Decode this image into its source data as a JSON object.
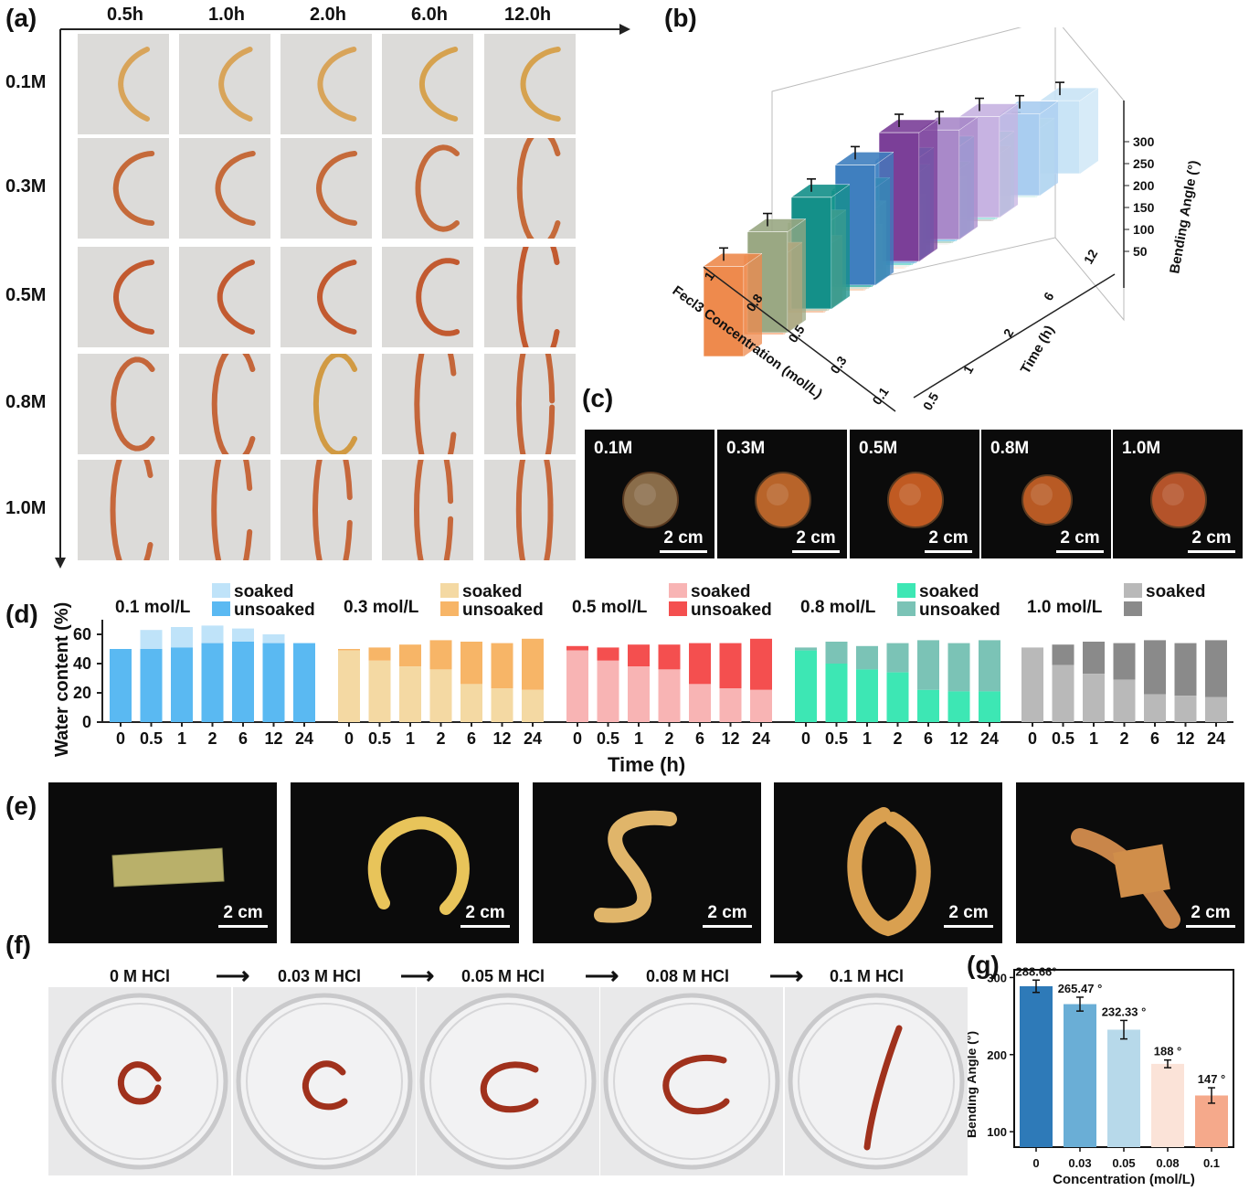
{
  "panel_a": {
    "label": "(a)",
    "times": [
      "0.5h",
      "1.0h",
      "2.0h",
      "6.0h",
      "12.0h"
    ],
    "concs": [
      "0.1M",
      "0.3M",
      "0.5M",
      "0.8M",
      "1.0M"
    ],
    "curvature": [
      [
        0.1,
        0.12,
        0.2,
        0.18,
        0.25
      ],
      [
        0.3,
        0.25,
        0.28,
        0.55,
        0.7
      ],
      [
        0.28,
        0.15,
        0.22,
        0.45,
        0.75
      ],
      [
        0.6,
        0.7,
        0.65,
        0.8,
        0.95
      ],
      [
        0.75,
        0.85,
        0.9,
        0.92,
        1.0
      ]
    ]
  },
  "panel_b": {
    "label": "(b)"
  },
  "panel_c": {
    "label": "(c)",
    "tiles": [
      "0.1M",
      "0.3M",
      "0.5M",
      "0.8M",
      "1.0M"
    ],
    "scale": "2 cm"
  },
  "panel_d": {
    "label": "(d)"
  },
  "panel_e": {
    "label": "(e)",
    "scale": "2 cm"
  },
  "panel_f": {
    "label": "(f)",
    "steps": [
      "0 M HCl",
      "0.03 M HCl",
      "0.05 M HCl",
      "0.08 M HCl",
      "0.1 M HCl"
    ],
    "arrow": "⟶"
  },
  "panel_g": {
    "label": "(g)"
  },
  "chart_data": [
    {
      "type": "bar",
      "panel": "b",
      "zlabel": "Bending Angle (°)",
      "xlabel": "Fecl3 Concentration (mol/L)",
      "ylabel": "Time (h)",
      "concentrations": [
        "0.1",
        "0.3",
        "0.5",
        "0.8",
        "1"
      ],
      "times": [
        "0.5",
        "1",
        "2",
        "6",
        "12"
      ],
      "z_ticks": [
        "50",
        "100",
        "150",
        "200",
        "250",
        "300"
      ],
      "zlim": [
        0,
        300
      ],
      "values": [
        [
          120,
          130,
          145,
          155,
          170
        ],
        [
          125,
          140,
          160,
          175,
          190
        ],
        [
          150,
          175,
          205,
          215,
          235
        ],
        [
          185,
          205,
          225,
          240,
          255
        ],
        [
          210,
          235,
          260,
          280,
          300
        ]
      ]
    },
    {
      "type": "bar",
      "panel": "d",
      "ylabel": "Water content (%)",
      "xlabel": "Time (h)",
      "x": [
        "0",
        "0.5",
        "1",
        "2",
        "6",
        "12",
        "24"
      ],
      "ylim": [
        0,
        70
      ],
      "yticks": [
        "0",
        "20",
        "40",
        "60"
      ],
      "legend_soaked": "soaked",
      "legend_unsoaked": "unsoaked",
      "groups": [
        {
          "name": "0.1 mol/L",
          "soaked_color": "#bfe3f9",
          "unsoaked_color": "#5ab9f2",
          "unsoaked": [
            50,
            50,
            51,
            54,
            55,
            54,
            54
          ],
          "total": [
            50,
            63,
            65,
            66,
            64,
            60,
            54
          ],
          "legend_unsoaked": "unsoaked"
        },
        {
          "name": "0.3 mol/L",
          "soaked_color": "#f4d9a3",
          "unsoaked_color": "#f7b567",
          "unsoaked": [
            49,
            42,
            38,
            36,
            26,
            23,
            22
          ],
          "total": [
            50,
            51,
            53,
            56,
            55,
            54,
            57
          ],
          "legend_unsoaked": "unsoaked"
        },
        {
          "name": "0.5 mol/L",
          "soaked_color": "#f8b4b4",
          "unsoaked_color": "#f44f4f",
          "unsoaked": [
            49,
            42,
            38,
            36,
            26,
            23,
            22
          ],
          "total": [
            52,
            51,
            53,
            53,
            54,
            54,
            57
          ],
          "legend_unsoaked": "unsoaked"
        },
        {
          "name": "0.8 mol/L",
          "soaked_color": "#3de7b4",
          "unsoaked_color": "#7bc3b6",
          "unsoaked": [
            49,
            40,
            36,
            34,
            22,
            21,
            21
          ],
          "total": [
            51,
            55,
            52,
            54,
            56,
            54,
            56
          ],
          "legend_unsoaked": "unsoaked"
        },
        {
          "name": "1.0 mol/L",
          "soaked_color": "#b9b9b9",
          "unsoaked_color": "#8a8a8a",
          "unsoaked": [
            51,
            39,
            33,
            29,
            19,
            18,
            17
          ],
          "total": [
            51,
            53,
            55,
            54,
            56,
            54,
            56
          ],
          "legend_unsoaked": ""
        }
      ]
    },
    {
      "type": "bar",
      "panel": "g",
      "ylabel": "Bending Angle (°)",
      "xlabel": "Concentration (mol/L)",
      "categories": [
        "0",
        "0.03",
        "0.05",
        "0.08",
        "0.1"
      ],
      "values": [
        288.66,
        265.47,
        232.33,
        188,
        147
      ],
      "errors": [
        8,
        9,
        12,
        5,
        10
      ],
      "value_labels": [
        "288.66°",
        "265.47 °",
        "232.33 °",
        "188 °",
        "147 °"
      ],
      "yticks": [
        "100",
        "200",
        "300"
      ],
      "ylim": [
        80,
        310
      ],
      "colors": [
        "#2e7ab8",
        "#6aaed6",
        "#b7d9ea",
        "#fbe3d8",
        "#f5a98b"
      ]
    }
  ]
}
